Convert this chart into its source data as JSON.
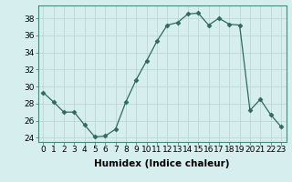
{
  "x": [
    0,
    1,
    2,
    3,
    4,
    5,
    6,
    7,
    8,
    9,
    10,
    11,
    12,
    13,
    14,
    15,
    16,
    17,
    18,
    19,
    20,
    21,
    22,
    23
  ],
  "y": [
    29.3,
    28.2,
    27.0,
    27.0,
    25.5,
    24.1,
    24.2,
    25.0,
    28.2,
    30.8,
    33.0,
    35.3,
    37.2,
    37.5,
    38.5,
    38.6,
    37.2,
    38.0,
    37.3,
    37.2,
    27.2,
    28.5,
    26.7,
    25.3
  ],
  "line_color": "#2e6b5e",
  "marker": "D",
  "marker_size": 2.5,
  "bg_color": "#d6eeee",
  "grid_color": "#b8d4d4",
  "xlabel": "Humidex (Indice chaleur)",
  "ylim": [
    23.5,
    39.5
  ],
  "yticks": [
    24,
    26,
    28,
    30,
    32,
    34,
    36,
    38
  ],
  "xticks": [
    0,
    1,
    2,
    3,
    4,
    5,
    6,
    7,
    8,
    9,
    10,
    11,
    12,
    13,
    14,
    15,
    16,
    17,
    18,
    19,
    20,
    21,
    22,
    23
  ],
  "xlabel_fontsize": 7.5,
  "tick_fontsize": 6.5
}
